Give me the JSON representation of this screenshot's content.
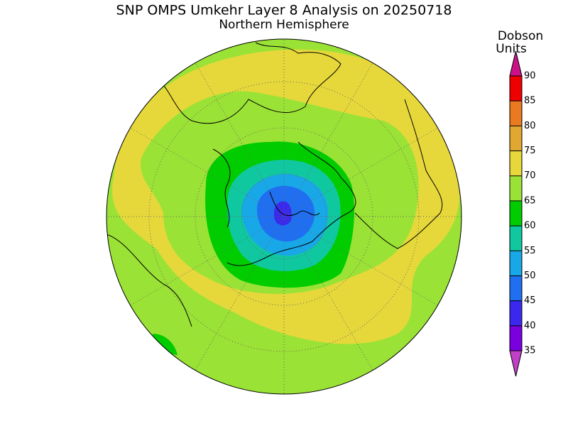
{
  "title": "SNP OMPS Umkehr Layer 8 Analysis on 20250718",
  "subtitle": "Northern Hemisphere",
  "colorbar": {
    "label": [
      "Dobson",
      "Units"
    ],
    "ticks": [
      35,
      40,
      45,
      50,
      55,
      60,
      65,
      70,
      75,
      80,
      85,
      90
    ],
    "under_color": "#c040c8",
    "colors": [
      "#7a00e0",
      "#3a28ee",
      "#1f6ff0",
      "#18a8e8",
      "#10c8a0",
      "#00cc00",
      "#9be236",
      "#e6d83a",
      "#e0a830",
      "#ea7a20",
      "#ee0000"
    ],
    "over_color": "#cc1188"
  }
}
